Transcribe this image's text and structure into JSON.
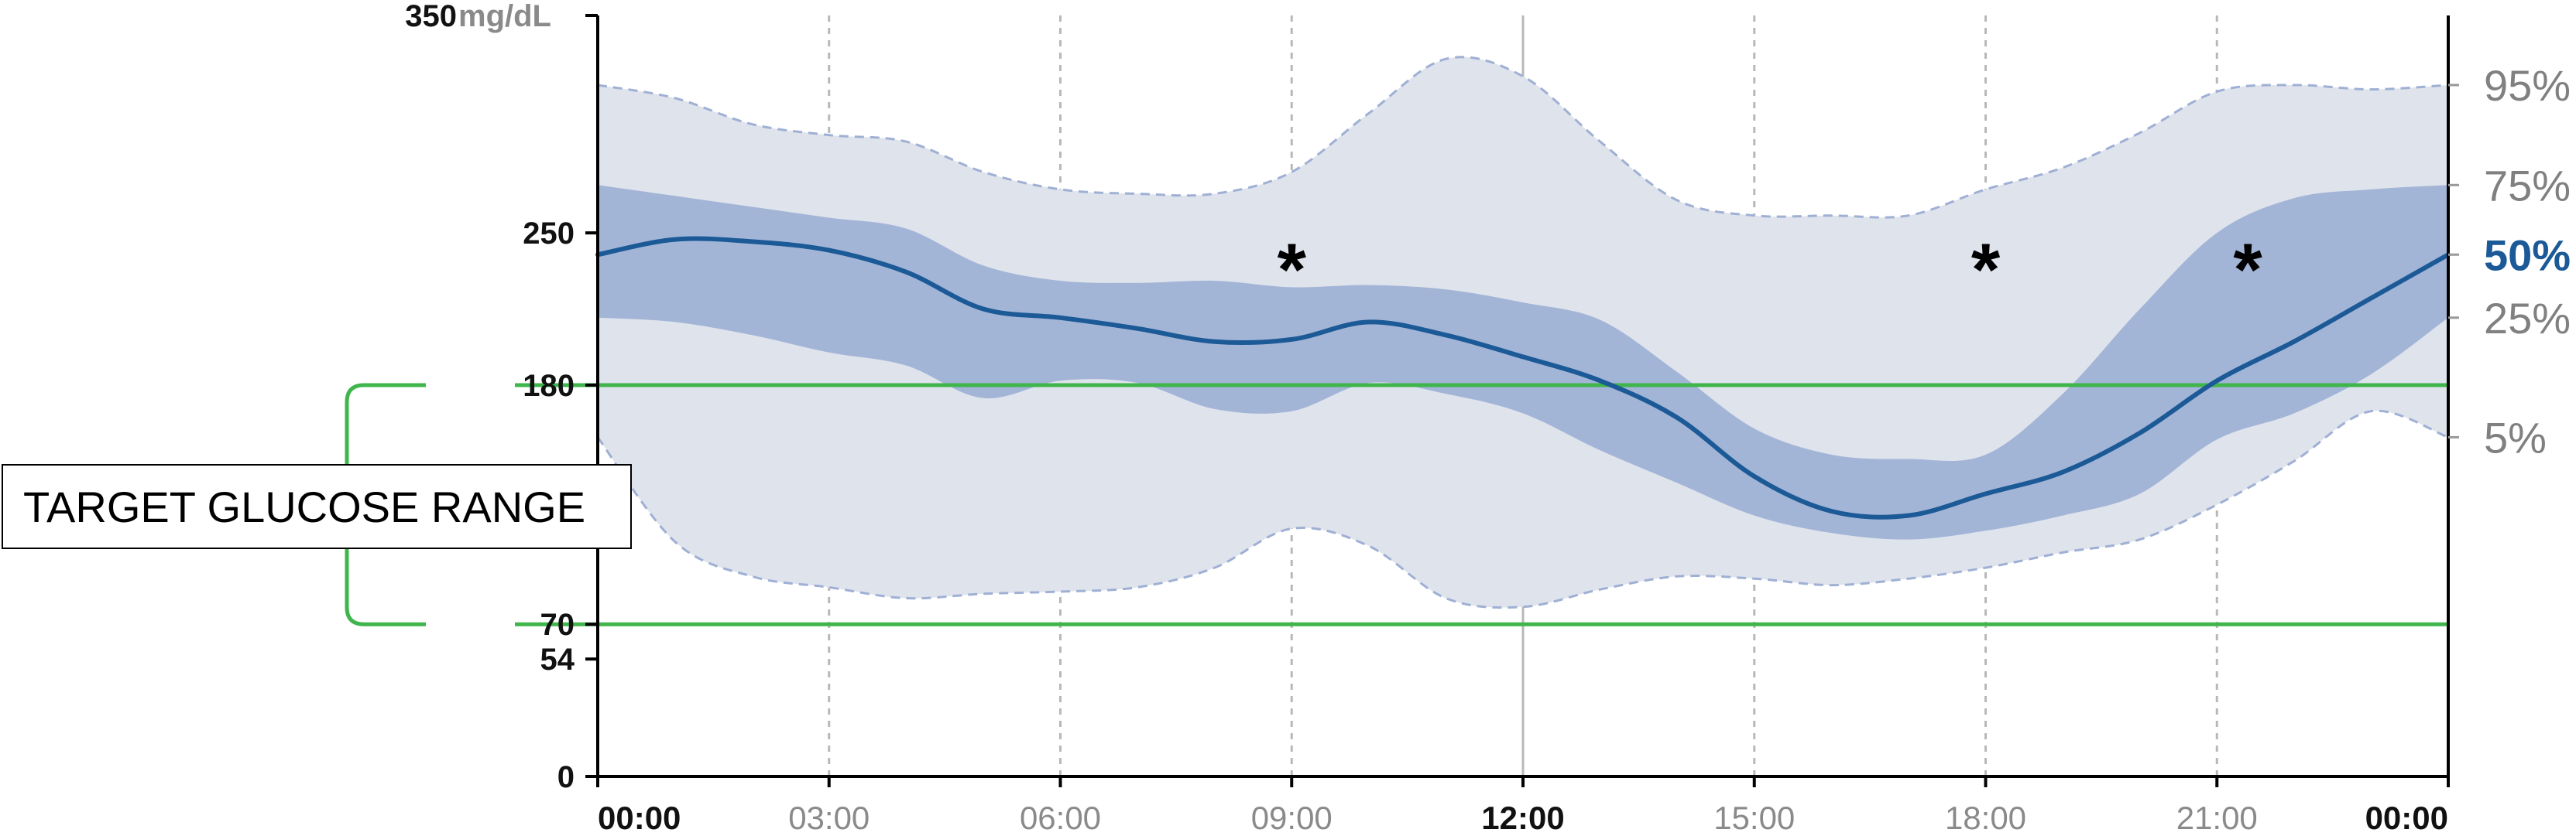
{
  "chart_data": {
    "type": "area",
    "y_unit": "mg/dL",
    "ylim": [
      0,
      350
    ],
    "y_ticks": [
      {
        "value": 0,
        "label": "0"
      },
      {
        "value": 54,
        "label": "54"
      },
      {
        "value": 70,
        "label": "70"
      },
      {
        "value": 180,
        "label": "180"
      },
      {
        "value": 250,
        "label": "250"
      },
      {
        "value": 350,
        "label": "350"
      }
    ],
    "x_ticks": [
      {
        "hour": 0,
        "label": "00:00",
        "major": true
      },
      {
        "hour": 3,
        "label": "03:00",
        "major": false
      },
      {
        "hour": 6,
        "label": "06:00",
        "major": false
      },
      {
        "hour": 9,
        "label": "09:00",
        "major": false
      },
      {
        "hour": 12,
        "label": "12:00",
        "major": true
      },
      {
        "hour": 15,
        "label": "15:00",
        "major": false
      },
      {
        "hour": 18,
        "label": "18:00",
        "major": false
      },
      {
        "hour": 21,
        "label": "21:00",
        "major": false
      },
      {
        "hour": 24,
        "label": "00:00",
        "major": true
      }
    ],
    "x_hours": [
      0,
      1,
      2,
      3,
      4,
      5,
      6,
      7,
      8,
      9,
      10,
      11,
      12,
      13,
      14,
      15,
      16,
      17,
      18,
      19,
      20,
      21,
      22,
      23,
      24
    ],
    "series": [
      {
        "name": "95%",
        "values": [
          318,
          312,
          300,
          295,
          292,
          278,
          270,
          268,
          268,
          278,
          305,
          330,
          322,
          292,
          265,
          258,
          258,
          258,
          270,
          280,
          296,
          315,
          318,
          316,
          318
        ]
      },
      {
        "name": "75%",
        "values": [
          272,
          267,
          262,
          257,
          252,
          235,
          228,
          227,
          228,
          225,
          226,
          224,
          218,
          210,
          186,
          160,
          148,
          146,
          148,
          176,
          215,
          250,
          266,
          270,
          272
        ]
      },
      {
        "name": "50%",
        "values": [
          240,
          247,
          246,
          242,
          232,
          215,
          211,
          206,
          200,
          201,
          209,
          203,
          193,
          182,
          165,
          138,
          122,
          120,
          130,
          140,
          158,
          182,
          200,
          220,
          240
        ]
      },
      {
        "name": "25%",
        "values": [
          211,
          209,
          203,
          195,
          189,
          174,
          182,
          181,
          169,
          168,
          181,
          176,
          167,
          150,
          135,
          120,
          112,
          109,
          113,
          120,
          130,
          155,
          167,
          185,
          211
        ]
      },
      {
        "name": "5%",
        "values": [
          156,
          108,
          92,
          87,
          82,
          84,
          85,
          87,
          96,
          114,
          106,
          82,
          78,
          86,
          92,
          91,
          88,
          91,
          96,
          103,
          109,
          125,
          145,
          168,
          156
        ]
      }
    ],
    "target_range": {
      "low": 70,
      "high": 180,
      "label": "TARGET GLUCOSE RANGE"
    },
    "annotations": [
      {
        "hour": 9,
        "value": 240,
        "text": "*"
      },
      {
        "hour": 18,
        "value": 240,
        "text": "*"
      },
      {
        "hour": 21.4,
        "value": 240,
        "text": "*"
      }
    ],
    "colors": {
      "outer_band": "#dfe3ec",
      "outer_band_edge": "#9fb0d4",
      "inner_band": "#a3b5d7",
      "median": "#1b5a96",
      "target_line": "#3fb54b",
      "grid": "#b8b8b8"
    },
    "grid": true,
    "legend": "right"
  }
}
